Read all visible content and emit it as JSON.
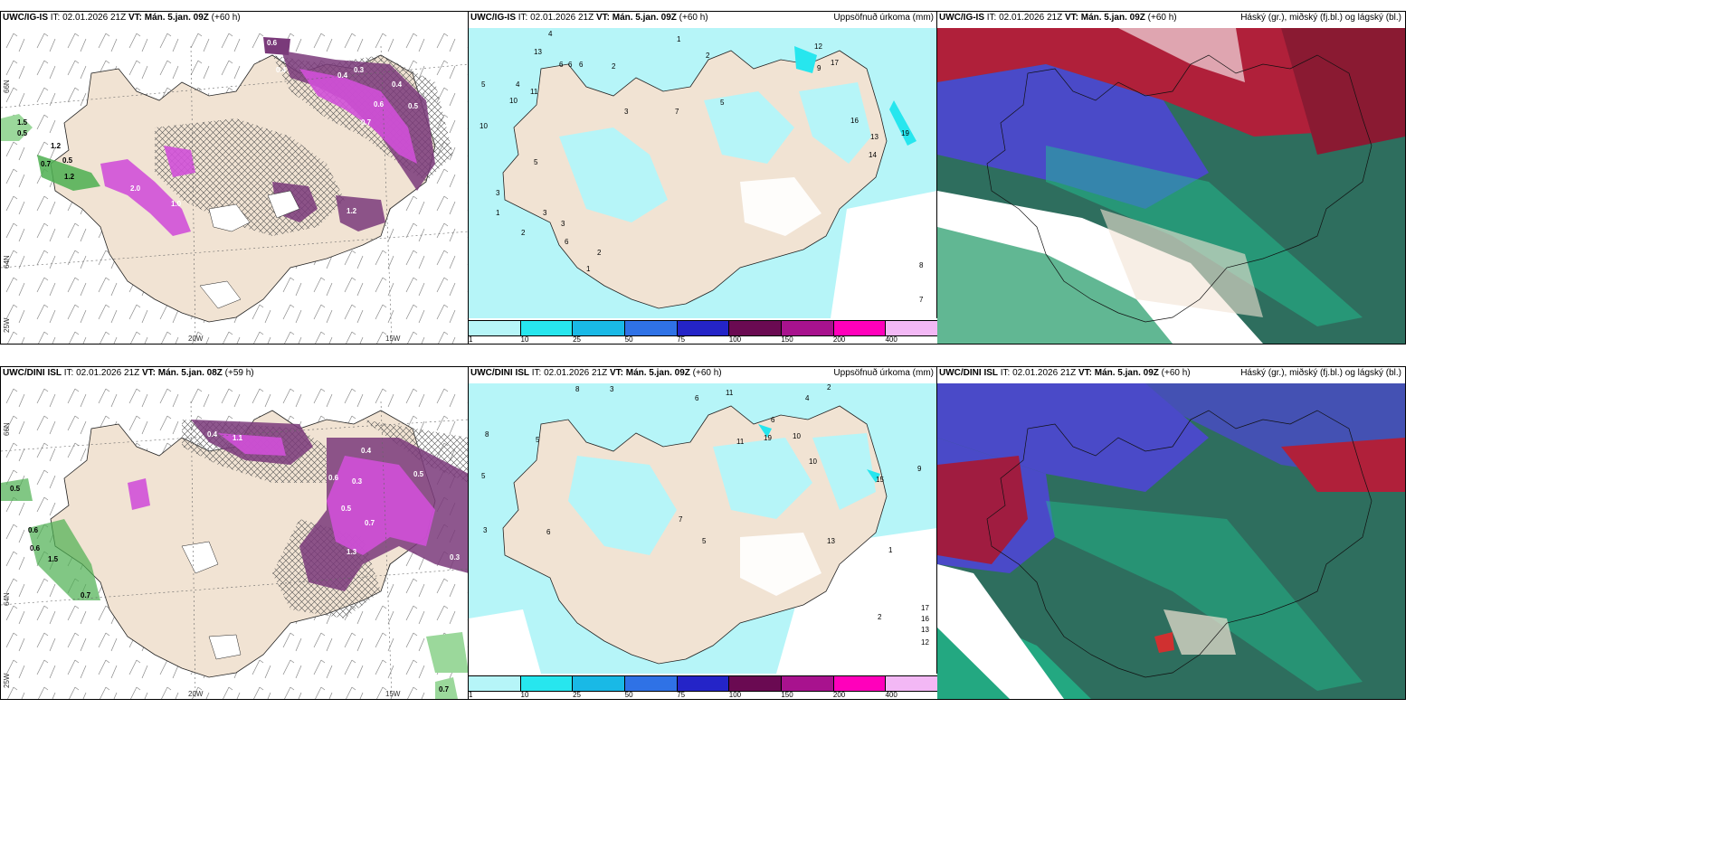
{
  "panels": [
    {
      "model": "UWC/IG-IS",
      "init": "IT: 02.01.2026 21Z",
      "valid": "VT: Mán. 5.jan. 09Z",
      "lead": "(+60 h)",
      "right_title": ""
    },
    {
      "model": "UWC/IG-IS",
      "init": "IT: 02.01.2026 21Z",
      "valid": "VT: Mán. 5.jan. 09Z",
      "lead": "(+60 h)",
      "right_title": "Uppsöfnuð úrkoma (mm)"
    },
    {
      "model": "UWC/IG-IS",
      "init": "IT: 02.01.2026 21Z",
      "valid": "VT: Mán. 5.jan. 09Z",
      "lead": "(+60 h)",
      "right_title": "Háský (gr.), miðský (fj.bl.) og lágský (bl.)"
    },
    {
      "model": "UWC/DINI ISL",
      "init": "IT: 02.01.2026 21Z",
      "valid": "VT: Mán. 5.jan. 08Z",
      "lead": "(+59 h)",
      "right_title": ""
    },
    {
      "model": "UWC/DINI ISL",
      "init": "IT: 02.01.2026 21Z",
      "valid": "VT: Mán. 5.jan. 09Z",
      "lead": "(+60 h)",
      "right_title": "Uppsöfnuð úrkoma (mm)"
    },
    {
      "model": "UWC/DINI ISL",
      "init": "IT: 02.01.2026 21Z",
      "valid": "VT: Mán. 5.jan. 09Z",
      "lead": "(+60 h)",
      "right_title": "Háský (gr.), miðský (fj.bl.) og lágský (bl.)"
    }
  ],
  "coords": {
    "lat_upper": "66N",
    "lat_lower": "64N",
    "lon_a": "20W",
    "lon_b": "15W",
    "lon_left": "25W"
  },
  "legend": {
    "ticks": [
      "1",
      "10",
      "25",
      "50",
      "75",
      "100",
      "150",
      "200",
      "400"
    ],
    "colors": [
      "#b6f5f8",
      "#27e6ee",
      "#19b9e6",
      "#2f72e6",
      "#2424c8",
      "#6a0a52",
      "#a8128e",
      "#ff00bb",
      "#f3b8f5"
    ]
  },
  "colors": {
    "land": "#f1e3d3",
    "precip_light": "#b6f5f8",
    "precip_mid": "#2ed0f0",
    "snow_magenta": "#d050d8",
    "dark_purple": "#7a3a7a",
    "green": "#9bd89b"
  },
  "precip_labels_top": [
    "4",
    "1",
    "13",
    "6",
    "6",
    "6",
    "2",
    "2",
    "12",
    "9",
    "17",
    "5",
    "10",
    "11",
    "4",
    "10",
    "3",
    "7",
    "5",
    "16",
    "13",
    "19",
    "14",
    "8",
    "7",
    "3",
    "5",
    "3",
    "1",
    "2",
    "3",
    "6",
    "2",
    "1"
  ],
  "precip_labels_bottom": [
    "8",
    "3",
    "6",
    "11",
    "4",
    "2",
    "5",
    "5",
    "6",
    "10",
    "11",
    "19",
    "10",
    "15",
    "3",
    "5",
    "7",
    "6",
    "13",
    "2",
    "17",
    "16",
    "13",
    "12",
    "8",
    "9",
    "1"
  ],
  "snow_labels_top": [
    "0.3",
    "0.6",
    "0.4",
    "0.4",
    "0.3",
    "0.4",
    "0.5",
    "0.7",
    "0.6",
    "1.5",
    "0.5",
    "1.2",
    "0.7",
    "0.5",
    "1.2",
    "2.0",
    "1.0",
    "1.2"
  ],
  "snow_labels_bottom": [
    "0.5",
    "0.4",
    "1.1",
    "0.6",
    "0.3",
    "0.4",
    "0.5",
    "0.7",
    "0.6",
    "0.5",
    "1.3",
    "0.6",
    "1.5",
    "0.7",
    "0.3",
    "0.7"
  ]
}
